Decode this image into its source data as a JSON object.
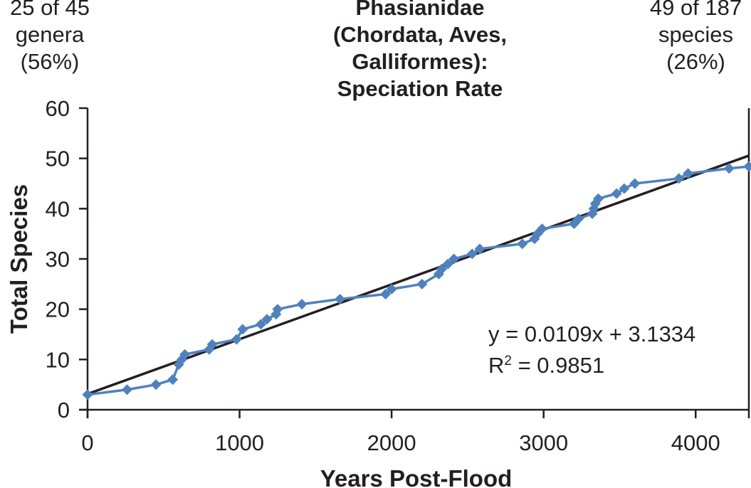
{
  "left_note": [
    "25 of 45",
    "genera",
    "(56%)"
  ],
  "right_note": [
    "49 of 187",
    "species",
    "(26%)"
  ],
  "chart_data": {
    "type": "scatter",
    "title_lines": [
      "Phasianidae (Chordata, Aves,",
      "Galliformes):",
      "Speciation Rate"
    ],
    "xlabel": "Years Post-Flood",
    "ylabel": "Total Species",
    "xlim": [
      0,
      4350
    ],
    "ylim": [
      0,
      60
    ],
    "x_ticks": [
      0,
      1000,
      2000,
      3000,
      4000
    ],
    "y_ticks": [
      0,
      10,
      20,
      30,
      40,
      50,
      60
    ],
    "grid": false,
    "series": [
      {
        "color": "#4f81bd",
        "marker": "diamond",
        "points": [
          [
            0,
            3
          ],
          [
            260,
            4
          ],
          [
            450,
            5
          ],
          [
            560,
            6
          ],
          [
            600,
            9
          ],
          [
            620,
            10
          ],
          [
            640,
            11
          ],
          [
            800,
            12
          ],
          [
            820,
            13
          ],
          [
            980,
            14
          ],
          [
            1020,
            16
          ],
          [
            1140,
            17
          ],
          [
            1180,
            18
          ],
          [
            1240,
            19
          ],
          [
            1250,
            20
          ],
          [
            1410,
            21
          ],
          [
            1660,
            22
          ],
          [
            1960,
            23
          ],
          [
            2000,
            24
          ],
          [
            2200,
            25
          ],
          [
            2310,
            27
          ],
          [
            2330,
            28
          ],
          [
            2370,
            29
          ],
          [
            2410,
            30
          ],
          [
            2530,
            31
          ],
          [
            2580,
            32
          ],
          [
            2860,
            33
          ],
          [
            2940,
            34
          ],
          [
            2960,
            35
          ],
          [
            2990,
            36
          ],
          [
            3200,
            37
          ],
          [
            3230,
            38
          ],
          [
            3320,
            39
          ],
          [
            3330,
            40
          ],
          [
            3340,
            41
          ],
          [
            3360,
            42
          ],
          [
            3480,
            43
          ],
          [
            3530,
            44
          ],
          [
            3600,
            45
          ],
          [
            3890,
            46
          ],
          [
            3950,
            47
          ],
          [
            4220,
            48
          ],
          [
            4350,
            48.4
          ]
        ]
      }
    ],
    "trendline": {
      "slope": 0.0109,
      "intercept": 3.1334,
      "color": "#231f20",
      "equation_label": "y = 0.0109x + 3.1334",
      "r2_prefix": "R",
      "r2_superscript": "2",
      "r2_value": " = 0.9851"
    }
  }
}
